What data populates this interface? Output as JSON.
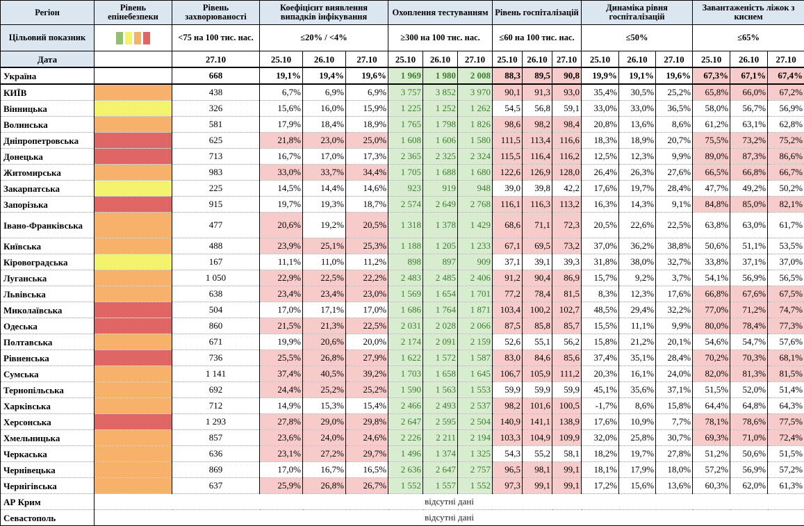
{
  "colors": {
    "header_bg": "#dce6f1",
    "red_cell": "#f8cbcb",
    "green_cell": "#d8eccf",
    "green_text": "#3a7d2c",
    "level_red": "#e06666",
    "level_orange": "#f6b26b",
    "level_yellow": "#f3f36d",
    "level_green": "#8fc26b"
  },
  "header": {
    "region": "Регіон",
    "level": "Рівень епінебезпеки",
    "incidence": "Рівень захворюваності",
    "detection": "Коефіцієнт виявлення випадків інфікування",
    "testing": "Охоплення тестуванням",
    "hosp": "Рівень госпіталізацій",
    "dynamics": "Динаміка рівня госпіталізацій",
    "oxygen": "Завантаженість ліжок з киснем"
  },
  "targets": {
    "label": "Цільовий показник",
    "swatches": [
      "#8fc26b",
      "#f3f36d",
      "#f6b26b",
      "#e06666"
    ],
    "incidence": "<75 на 100 тис. нас.",
    "detection": "≤20% / <4%",
    "testing": "≥300 на 100 тис. нас.",
    "hosp": "≤60 на 100 тис. нас.",
    "dynamics": "≤50%",
    "oxygen": "≤65%"
  },
  "dates_label": "Дата",
  "dates": {
    "incidence": "27.10",
    "detection": [
      "25.10",
      "26.10",
      "27.10"
    ],
    "testing": [
      "25.10",
      "26.10",
      "27.10"
    ],
    "hosp": [
      "25.10",
      "26.10",
      "27.10"
    ],
    "dynamics": [
      "25.10",
      "26.10",
      "27.10"
    ],
    "oxygen": [
      "25.10",
      "26.10",
      "27.10"
    ]
  },
  "ukraine": {
    "name": "Україна",
    "incidence": "668",
    "detection": [
      "19,1%",
      "19,4%",
      "19,6%"
    ],
    "testing": [
      "1 969",
      "1 980",
      "2 008"
    ],
    "hosp": [
      "88,3",
      "89,5",
      "90,8"
    ],
    "dynamics": [
      "19,9%",
      "19,1%",
      "19,6%"
    ],
    "oxygen": [
      "67,3%",
      "67,1%",
      "67,4%"
    ]
  },
  "rows": [
    {
      "name": "КИЇВ",
      "level": "orange",
      "incidence": "438",
      "detection": [
        "6,7%",
        "6,9%",
        "6,9%"
      ],
      "testing": [
        "3 757",
        "3 852",
        "3 970"
      ],
      "hosp": [
        "90,1",
        "91,3",
        "93,0"
      ],
      "dynamics": [
        "35,4%",
        "30,5%",
        "25,2%"
      ],
      "oxygen": [
        "65,8%",
        "66,0%",
        "67,2%"
      ]
    },
    {
      "name": "Вінницька",
      "level": "yellow",
      "incidence": "326",
      "detection": [
        "15,6%",
        "16,0%",
        "15,9%"
      ],
      "testing": [
        "1 225",
        "1 252",
        "1 262"
      ],
      "hosp": [
        "54,5",
        "56,8",
        "59,1"
      ],
      "dynamics": [
        "33,0%",
        "33,0%",
        "36,5%"
      ],
      "oxygen": [
        "58,0%",
        "56,7%",
        "56,9%"
      ]
    },
    {
      "name": "Волинська",
      "level": "orange",
      "incidence": "581",
      "detection": [
        "17,9%",
        "18,4%",
        "18,9%"
      ],
      "testing": [
        "1 765",
        "1 798",
        "1 826"
      ],
      "hosp": [
        "98,6",
        "98,2",
        "98,4"
      ],
      "dynamics": [
        "20,8%",
        "13,6%",
        "8,6%"
      ],
      "oxygen": [
        "61,2%",
        "63,1%",
        "62,8%"
      ]
    },
    {
      "name": "Дніпропетровська",
      "level": "red",
      "incidence": "625",
      "detection": [
        "21,8%",
        "23,0%",
        "25,0%"
      ],
      "testing": [
        "1 608",
        "1 606",
        "1 580"
      ],
      "hosp": [
        "111,5",
        "113,4",
        "116,6"
      ],
      "dynamics": [
        "18,3%",
        "18,9%",
        "20,7%"
      ],
      "oxygen": [
        "75,5%",
        "73,2%",
        "75,2%"
      ]
    },
    {
      "name": "Донецька",
      "level": "red",
      "incidence": "713",
      "detection": [
        "16,7%",
        "17,0%",
        "17,3%"
      ],
      "testing": [
        "2 365",
        "2 325",
        "2 324"
      ],
      "hosp": [
        "115,5",
        "116,4",
        "116,2"
      ],
      "dynamics": [
        "12,5%",
        "12,3%",
        "9,9%"
      ],
      "oxygen": [
        "89,0%",
        "87,3%",
        "86,6%"
      ]
    },
    {
      "name": "Житомирська",
      "level": "orange",
      "incidence": "983",
      "detection": [
        "33,0%",
        "33,7%",
        "34,4%"
      ],
      "testing": [
        "1 705",
        "1 688",
        "1 680"
      ],
      "hosp": [
        "122,6",
        "126,9",
        "128,0"
      ],
      "dynamics": [
        "26,4%",
        "26,3%",
        "27,6%"
      ],
      "oxygen": [
        "66,5%",
        "66,8%",
        "66,7%"
      ]
    },
    {
      "name": "Закарпатська",
      "level": "yellow",
      "incidence": "225",
      "detection": [
        "14,5%",
        "14,4%",
        "14,6%"
      ],
      "testing": [
        "923",
        "919",
        "948"
      ],
      "hosp": [
        "39,0",
        "39,8",
        "42,2"
      ],
      "dynamics": [
        "17,6%",
        "19,7%",
        "28,4%"
      ],
      "oxygen": [
        "47,7%",
        "49,2%",
        "50,2%"
      ]
    },
    {
      "name": "Запорізька",
      "level": "red",
      "incidence": "915",
      "detection": [
        "19,7%",
        "19,3%",
        "18,7%"
      ],
      "testing": [
        "2 574",
        "2 649",
        "2 768"
      ],
      "hosp": [
        "116,1",
        "116,3",
        "113,2"
      ],
      "dynamics": [
        "16,3%",
        "14,3%",
        "9,1%"
      ],
      "oxygen": [
        "84,8%",
        "85,0%",
        "82,1%"
      ]
    },
    {
      "name": "Івано-Франківська",
      "level": "orange",
      "incidence": "477",
      "tall": true,
      "detection": [
        "20,6%",
        "19,2%",
        "20,5%"
      ],
      "testing": [
        "1 318",
        "1 378",
        "1 429"
      ],
      "hosp": [
        "68,6",
        "71,1",
        "72,3"
      ],
      "dynamics": [
        "20,5%",
        "22,6%",
        "22,5%"
      ],
      "oxygen": [
        "63,8%",
        "63,0%",
        "61,7%"
      ]
    },
    {
      "name": "Київська",
      "level": "orange",
      "incidence": "488",
      "detection": [
        "23,9%",
        "25,1%",
        "25,3%"
      ],
      "testing": [
        "1 188",
        "1 205",
        "1 233"
      ],
      "hosp": [
        "67,1",
        "69,5",
        "73,2"
      ],
      "dynamics": [
        "37,0%",
        "36,2%",
        "38,8%"
      ],
      "oxygen": [
        "50,6%",
        "51,1%",
        "53,5%"
      ]
    },
    {
      "name": "Кіровоградська",
      "level": "yellow",
      "incidence": "167",
      "detection": [
        "11,1%",
        "11,0%",
        "11,2%"
      ],
      "testing": [
        "898",
        "897",
        "909"
      ],
      "hosp": [
        "37,1",
        "39,1",
        "39,3"
      ],
      "dynamics": [
        "31,8%",
        "38,0%",
        "32,7%"
      ],
      "oxygen": [
        "33,8%",
        "37,1%",
        "37,0%"
      ]
    },
    {
      "name": "Луганська",
      "level": "orange",
      "incidence": "1 050",
      "detection": [
        "22,9%",
        "22,5%",
        "22,2%"
      ],
      "testing": [
        "2 483",
        "2 485",
        "2 406"
      ],
      "hosp": [
        "91,2",
        "90,4",
        "86,9"
      ],
      "dynamics": [
        "15,7%",
        "9,2%",
        "3,7%"
      ],
      "oxygen": [
        "54,1%",
        "56,9%",
        "56,5%"
      ]
    },
    {
      "name": "Львівська",
      "level": "orange",
      "incidence": "638",
      "detection": [
        "23,4%",
        "23,4%",
        "23,0%"
      ],
      "testing": [
        "1 569",
        "1 654",
        "1 701"
      ],
      "hosp": [
        "77,2",
        "78,4",
        "81,5"
      ],
      "dynamics": [
        "8,3%",
        "12,3%",
        "17,6%"
      ],
      "oxygen": [
        "66,8%",
        "67,6%",
        "67,5%"
      ]
    },
    {
      "name": "Миколаївська",
      "level": "red",
      "incidence": "504",
      "detection": [
        "17,0%",
        "17,1%",
        "17,0%"
      ],
      "testing": [
        "1 686",
        "1 764",
        "1 871"
      ],
      "hosp": [
        "103,4",
        "100,2",
        "102,7"
      ],
      "dynamics": [
        "48,5%",
        "29,4%",
        "32,2%"
      ],
      "oxygen": [
        "77,0%",
        "71,2%",
        "74,7%"
      ]
    },
    {
      "name": "Одеська",
      "level": "red",
      "incidence": "860",
      "detection": [
        "21,5%",
        "21,3%",
        "22,5%"
      ],
      "testing": [
        "2 031",
        "2 028",
        "2 066"
      ],
      "hosp": [
        "87,5",
        "85,8",
        "85,7"
      ],
      "dynamics": [
        "15,5%",
        "11,1%",
        "9,9%"
      ],
      "oxygen": [
        "80,0%",
        "78,4%",
        "77,3%"
      ]
    },
    {
      "name": "Полтавська",
      "level": "orange",
      "incidence": "671",
      "detection": [
        "19,9%",
        "20,6%",
        "20,0%"
      ],
      "testing": [
        "2 174",
        "2 091",
        "2 159"
      ],
      "hosp": [
        "52,6",
        "55,1",
        "56,2"
      ],
      "dynamics": [
        "15,8%",
        "21,2%",
        "20,1%"
      ],
      "oxygen": [
        "54,6%",
        "54,7%",
        "57,6%"
      ]
    },
    {
      "name": "Рівненська",
      "level": "red",
      "incidence": "736",
      "detection": [
        "25,5%",
        "26,8%",
        "27,9%"
      ],
      "testing": [
        "1 622",
        "1 572",
        "1 587"
      ],
      "hosp": [
        "83,0",
        "84,6",
        "85,6"
      ],
      "dynamics": [
        "37,4%",
        "35,1%",
        "28,4%"
      ],
      "oxygen": [
        "70,2%",
        "70,3%",
        "68,1%"
      ]
    },
    {
      "name": "Сумська",
      "level": "orange",
      "incidence": "1 141",
      "detection": [
        "37,4%",
        "40,5%",
        "39,2%"
      ],
      "testing": [
        "1 703",
        "1 658",
        "1 645"
      ],
      "hosp": [
        "106,7",
        "105,9",
        "111,2"
      ],
      "dynamics": [
        "20,3%",
        "16,1%",
        "24,0%"
      ],
      "oxygen": [
        "82,0%",
        "81,3%",
        "81,5%"
      ]
    },
    {
      "name": "Тернопільська",
      "level": "orange",
      "incidence": "692",
      "detection": [
        "24,4%",
        "25,2%",
        "25,2%"
      ],
      "testing": [
        "1 590",
        "1 563",
        "1 553"
      ],
      "hosp": [
        "59,9",
        "59,9",
        "59,9"
      ],
      "dynamics": [
        "45,1%",
        "35,6%",
        "37,1%"
      ],
      "oxygen": [
        "51,5%",
        "52,0%",
        "51,4%"
      ]
    },
    {
      "name": "Харківська",
      "level": "orange",
      "incidence": "712",
      "detection": [
        "14,9%",
        "15,3%",
        "15,4%"
      ],
      "testing": [
        "2 466",
        "2 493",
        "2 537"
      ],
      "hosp": [
        "98,2",
        "101,6",
        "100,5"
      ],
      "dynamics": [
        "-1,7%",
        "8,6%",
        "15,8%"
      ],
      "oxygen": [
        "64,4%",
        "64,8%",
        "64,3%"
      ]
    },
    {
      "name": "Херсонська",
      "level": "red",
      "incidence": "1 293",
      "detection": [
        "27,8%",
        "29,0%",
        "29,8%"
      ],
      "testing": [
        "2 647",
        "2 595",
        "2 504"
      ],
      "hosp": [
        "140,9",
        "141,1",
        "138,9"
      ],
      "dynamics": [
        "17,6%",
        "10,9%",
        "7,7%"
      ],
      "oxygen": [
        "78,1%",
        "78,6%",
        "77,5%"
      ]
    },
    {
      "name": "Хмельницька",
      "level": "orange",
      "incidence": "857",
      "detection": [
        "23,6%",
        "24,0%",
        "24,6%"
      ],
      "testing": [
        "2 226",
        "2 211",
        "2 194"
      ],
      "hosp": [
        "103,3",
        "104,9",
        "109,9"
      ],
      "dynamics": [
        "32,0%",
        "25,8%",
        "30,7%"
      ],
      "oxygen": [
        "69,3%",
        "71,0%",
        "72,4%"
      ]
    },
    {
      "name": "Черкаська",
      "level": "orange",
      "incidence": "636",
      "detection": [
        "23,1%",
        "27,2%",
        "29,7%"
      ],
      "testing": [
        "1 496",
        "1 374",
        "1 325"
      ],
      "hosp": [
        "54,3",
        "55,2",
        "58,1"
      ],
      "dynamics": [
        "18,2%",
        "19,7%",
        "27,8%"
      ],
      "oxygen": [
        "51,2%",
        "50,6%",
        "51,5%"
      ]
    },
    {
      "name": "Чернівецька",
      "level": "orange",
      "incidence": "869",
      "detection": [
        "17,0%",
        "16,7%",
        "16,5%"
      ],
      "testing": [
        "2 636",
        "2 647",
        "2 757"
      ],
      "hosp": [
        "96,5",
        "98,1",
        "99,1"
      ],
      "dynamics": [
        "18,1%",
        "17,9%",
        "18,0%"
      ],
      "oxygen": [
        "57,2%",
        "56,9%",
        "57,2%"
      ]
    },
    {
      "name": "Чернігівська",
      "level": "orange",
      "incidence": "637",
      "detection": [
        "25,9%",
        "26,8%",
        "26,7%"
      ],
      "testing": [
        "1 552",
        "1 557",
        "1 552"
      ],
      "hosp": [
        "97,3",
        "99,1",
        "99,1"
      ],
      "dynamics": [
        "17,2%",
        "15,6%",
        "13,6%"
      ],
      "oxygen": [
        "60,3%",
        "62,0%",
        "61,3%"
      ]
    }
  ],
  "missing": [
    {
      "name": "АР Крим",
      "text": "відсутні дані"
    },
    {
      "name": "Севастополь",
      "text": "відсутні дані"
    }
  ]
}
